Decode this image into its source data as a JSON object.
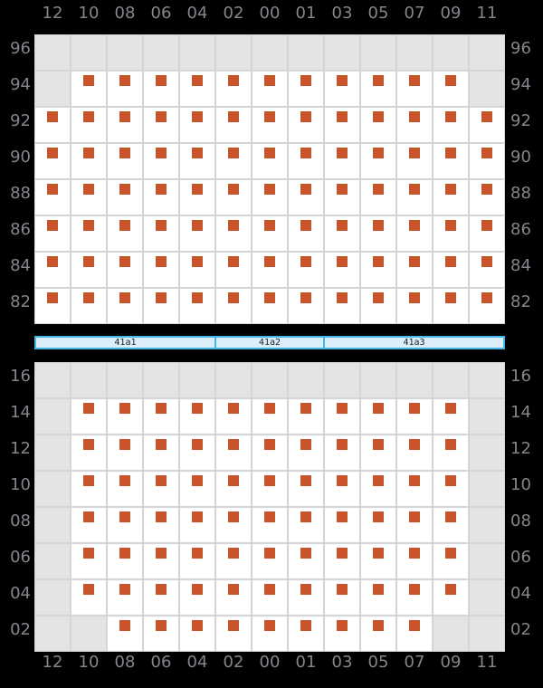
{
  "chart_data": {
    "type": "heatmap",
    "description": "Two mirrored presence-grid panels; filled cells carry an orange square marker, empty cells are gray.",
    "columns": [
      "12",
      "10",
      "08",
      "06",
      "04",
      "02",
      "00",
      "01",
      "03",
      "05",
      "07",
      "09",
      "11"
    ],
    "panels": [
      {
        "name": "upper",
        "rows": [
          "96",
          "94",
          "92",
          "90",
          "88",
          "86",
          "84",
          "82"
        ],
        "filled": [
          [
            0,
            0,
            0,
            0,
            0,
            0,
            0,
            0,
            0,
            0,
            0,
            0,
            0
          ],
          [
            0,
            1,
            1,
            1,
            1,
            1,
            1,
            1,
            1,
            1,
            1,
            1,
            0
          ],
          [
            1,
            1,
            1,
            1,
            1,
            1,
            1,
            1,
            1,
            1,
            1,
            1,
            1
          ],
          [
            1,
            1,
            1,
            1,
            1,
            1,
            1,
            1,
            1,
            1,
            1,
            1,
            1
          ],
          [
            1,
            1,
            1,
            1,
            1,
            1,
            1,
            1,
            1,
            1,
            1,
            1,
            1
          ],
          [
            1,
            1,
            1,
            1,
            1,
            1,
            1,
            1,
            1,
            1,
            1,
            1,
            1
          ],
          [
            1,
            1,
            1,
            1,
            1,
            1,
            1,
            1,
            1,
            1,
            1,
            1,
            1
          ],
          [
            1,
            1,
            1,
            1,
            1,
            1,
            1,
            1,
            1,
            1,
            1,
            1,
            1
          ]
        ]
      },
      {
        "name": "lower",
        "rows": [
          "16",
          "14",
          "12",
          "10",
          "08",
          "06",
          "04",
          "02"
        ],
        "filled": [
          [
            0,
            0,
            0,
            0,
            0,
            0,
            0,
            0,
            0,
            0,
            0,
            0,
            0
          ],
          [
            0,
            1,
            1,
            1,
            1,
            1,
            1,
            1,
            1,
            1,
            1,
            1,
            0
          ],
          [
            0,
            1,
            1,
            1,
            1,
            1,
            1,
            1,
            1,
            1,
            1,
            1,
            0
          ],
          [
            0,
            1,
            1,
            1,
            1,
            1,
            1,
            1,
            1,
            1,
            1,
            1,
            0
          ],
          [
            0,
            1,
            1,
            1,
            1,
            1,
            1,
            1,
            1,
            1,
            1,
            1,
            0
          ],
          [
            0,
            1,
            1,
            1,
            1,
            1,
            1,
            1,
            1,
            1,
            1,
            1,
            0
          ],
          [
            0,
            1,
            1,
            1,
            1,
            1,
            1,
            1,
            1,
            1,
            1,
            1,
            0
          ],
          [
            0,
            0,
            1,
            1,
            1,
            1,
            1,
            1,
            1,
            1,
            1,
            0,
            0
          ]
        ]
      }
    ],
    "bar": {
      "segments": [
        {
          "label": "41a1",
          "span": 5
        },
        {
          "label": "41a2",
          "span": 3
        },
        {
          "label": "41a3",
          "span": 5
        }
      ]
    },
    "colors": {
      "background": "#000000",
      "marker": "#c8542b",
      "cell_filled": "#ffffff",
      "cell_empty": "#e4e4e7",
      "grid_line": "#d5d5d8",
      "label": "#85858d",
      "bar_fill": "#dceefa",
      "bar_border": "#44b7e9",
      "bar_text": "#222222"
    }
  }
}
